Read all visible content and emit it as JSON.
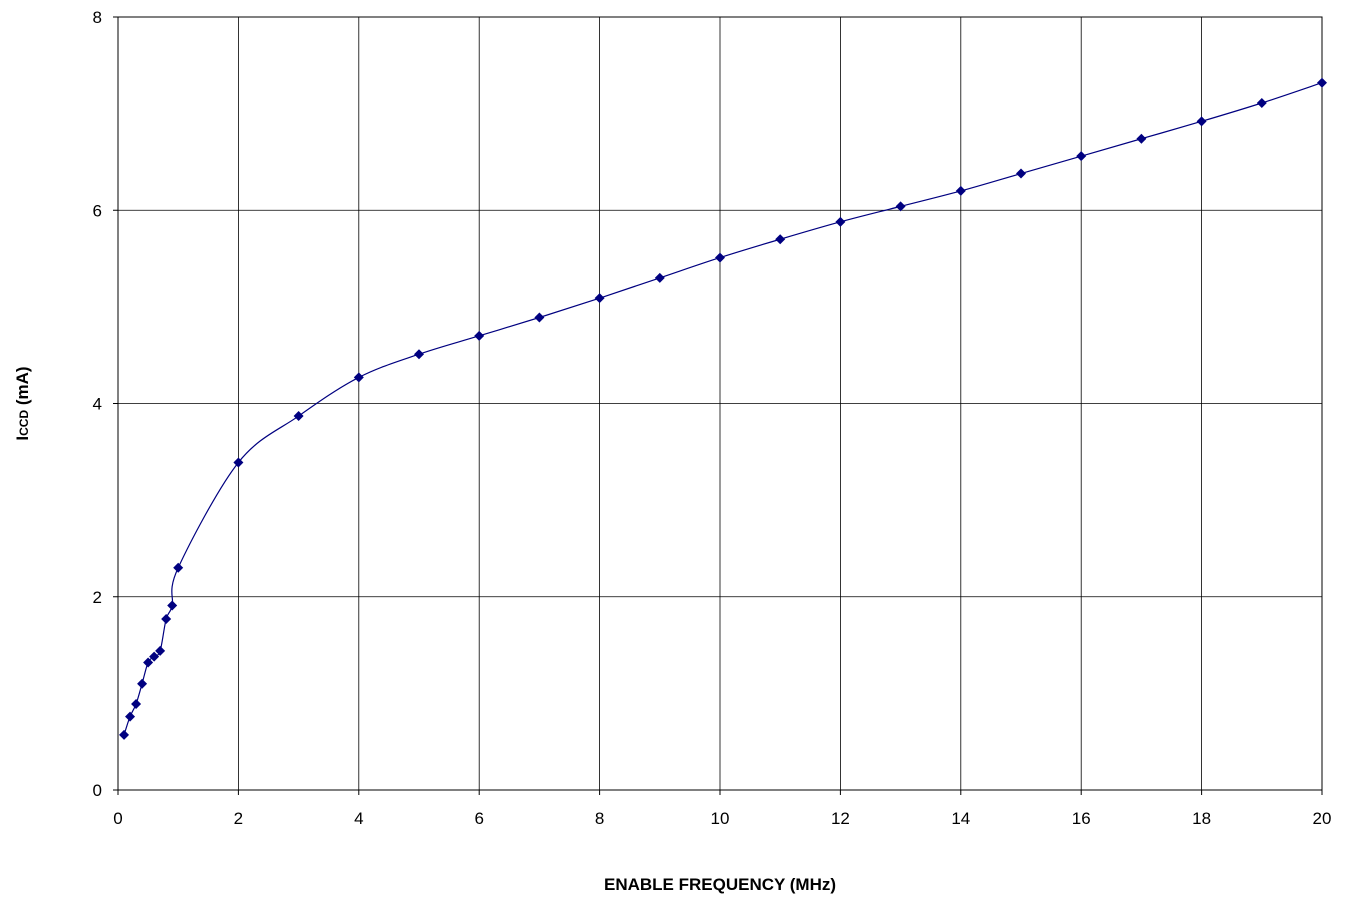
{
  "chart_data": {
    "type": "line",
    "title": "",
    "xlabel": "ENABLE FREQUENCY (MHz)",
    "ylabel": "ICCD (mA)",
    "ylabel_main": "I",
    "ylabel_sub": "CCD",
    "ylabel_unit": " (mA)",
    "xlim": [
      0,
      20
    ],
    "ylim": [
      0,
      8
    ],
    "xticks": [
      0,
      2,
      4,
      6,
      8,
      10,
      12,
      14,
      16,
      18,
      20
    ],
    "yticks": [
      0,
      2,
      4,
      6,
      8
    ],
    "grid": true,
    "legend": "none",
    "line_color": "#000080",
    "marker": "diamond",
    "series": [
      {
        "x": [
          0.1,
          0.2,
          0.3,
          0.4,
          0.5,
          0.6,
          0.7,
          0.8,
          0.9,
          1,
          2,
          3,
          4,
          5,
          6,
          7,
          8,
          9,
          10,
          11,
          12,
          13,
          14,
          15,
          16,
          17,
          18,
          19,
          20
        ],
        "values": [
          0.57,
          0.76,
          0.89,
          1.1,
          1.32,
          1.38,
          1.44,
          1.77,
          1.91,
          2.3,
          3.39,
          3.87,
          4.27,
          4.51,
          4.7,
          4.89,
          5.09,
          5.3,
          5.51,
          5.7,
          5.88,
          6.04,
          6.2,
          6.38,
          6.56,
          6.74,
          6.92,
          7.11,
          7.32
        ]
      }
    ]
  }
}
